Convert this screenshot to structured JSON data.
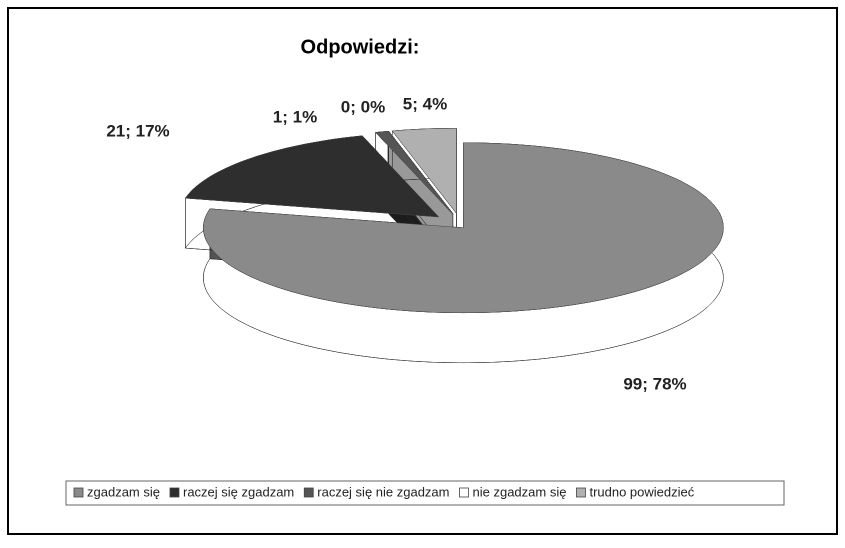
{
  "chart_data": {
    "type": "pie",
    "title": "Odpowiedzi:",
    "categories": [
      "zgadzam się",
      "raczej się zgadzam",
      "raczej się nie zgadzam",
      "nie zgadzam się",
      "trudno powiedzieć"
    ],
    "values": [
      99,
      21,
      1,
      0,
      5
    ],
    "value_labels": [
      "99; 78%",
      "21; 17%",
      "1; 1%",
      "0; 0%",
      "5; 4%"
    ],
    "colors": [
      "#8a8a8a",
      "#2e2e2e",
      "#555555",
      "#ffffff",
      "#b0b0b0"
    ],
    "legend": "bottom"
  }
}
